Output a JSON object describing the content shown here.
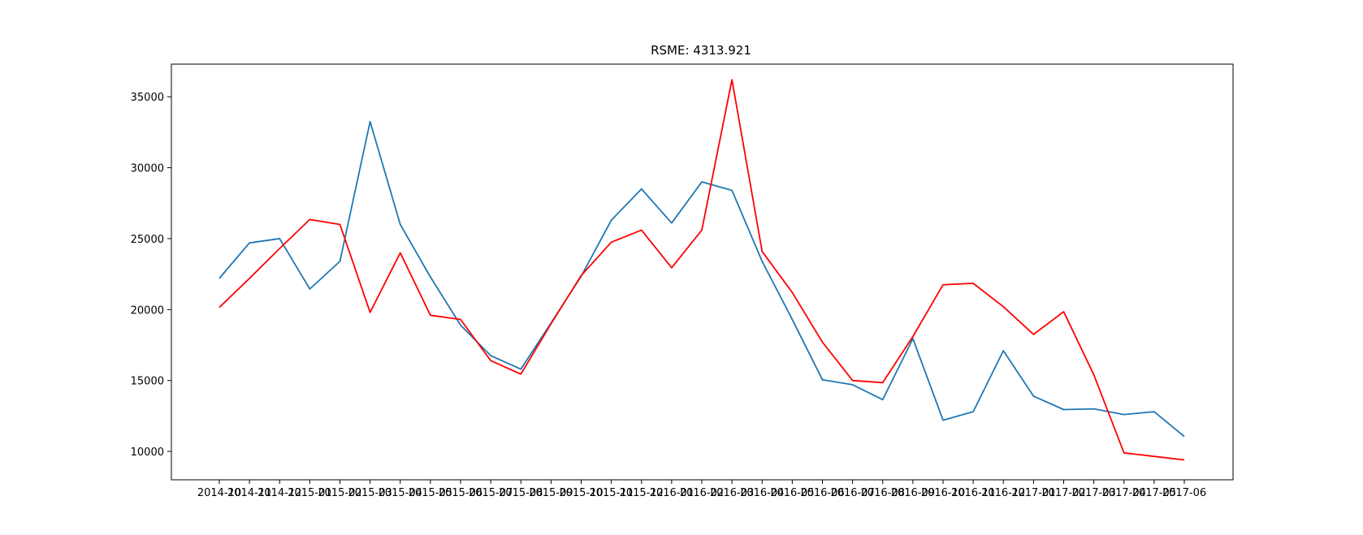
{
  "chart_data": {
    "type": "line",
    "title": "RSME: 4313.921",
    "xlabel": "",
    "ylabel": "",
    "categories": [
      "2014-10",
      "2014-11",
      "2014-12",
      "2015-01",
      "2015-02",
      "2015-03",
      "2015-04",
      "2015-05",
      "2015-06",
      "2015-07",
      "2015-08",
      "2015-09",
      "2015-10",
      "2015-11",
      "2015-12",
      "2016-01",
      "2016-02",
      "2016-03",
      "2016-04",
      "2016-05",
      "2016-06",
      "2016-07",
      "2016-08",
      "2016-09",
      "2016-10",
      "2016-11",
      "2016-12",
      "2017-01",
      "2017-02",
      "2017-03",
      "2017-04",
      "2017-05",
      "2017-06"
    ],
    "ylim": [
      8000,
      37300
    ],
    "yticks": [
      10000,
      15000,
      20000,
      25000,
      30000,
      35000
    ],
    "grid": false,
    "legend": "none",
    "series": [
      {
        "color": "#1f77b4",
        "values": [
          22200,
          24700,
          25000,
          21450,
          23400,
          33250,
          26000,
          22300,
          18900,
          16750,
          15800,
          19050,
          22350,
          26300,
          28500,
          26100,
          29000,
          28400,
          23400,
          19300,
          15050,
          14700,
          13650,
          17950,
          12200,
          12800,
          17100,
          13900,
          12950,
          13000,
          12600,
          12800,
          11050
        ]
      },
      {
        "color": "#ff0000",
        "values": [
          20150,
          22200,
          24300,
          26350,
          26000,
          19800,
          24000,
          19600,
          19300,
          16400,
          15450,
          19000,
          22400,
          24750,
          25600,
          22950,
          25600,
          36200,
          24100,
          21200,
          17700,
          15000,
          14850,
          18100,
          21750,
          21850,
          20200,
          18250,
          19850,
          15400,
          9900,
          9650,
          9400
        ]
      }
    ]
  }
}
